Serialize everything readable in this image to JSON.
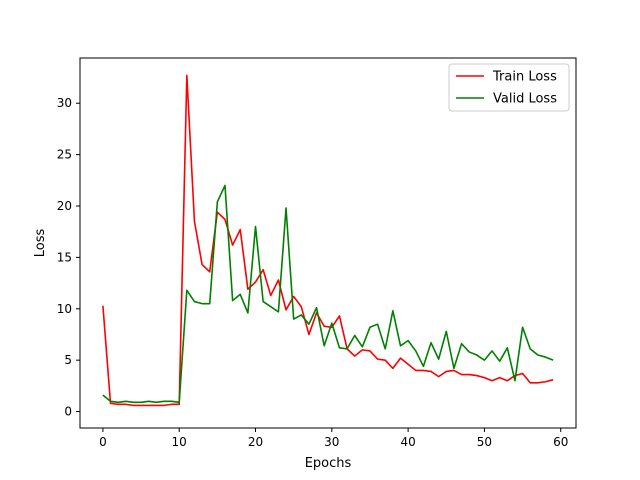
{
  "chart_data": {
    "type": "line",
    "title": "",
    "xlabel": "Epochs",
    "ylabel": "Loss",
    "xlim": [
      -3.0,
      62.0
    ],
    "ylim": [
      -1.6,
      34.4
    ],
    "xticks": [
      0,
      10,
      20,
      30,
      40,
      50,
      60
    ],
    "yticks": [
      0,
      5,
      10,
      15,
      20,
      25,
      30
    ],
    "legend_position": "top-right",
    "x": [
      0,
      1,
      2,
      3,
      4,
      5,
      6,
      7,
      8,
      9,
      10,
      11,
      12,
      13,
      14,
      15,
      16,
      17,
      18,
      19,
      20,
      21,
      22,
      23,
      24,
      25,
      26,
      27,
      28,
      29,
      30,
      31,
      32,
      33,
      34,
      35,
      36,
      37,
      38,
      39,
      40,
      41,
      42,
      43,
      44,
      45,
      46,
      47,
      48,
      49,
      50,
      51,
      52,
      53,
      54,
      55,
      56,
      57,
      58,
      59
    ],
    "series": [
      {
        "name": "Train Loss",
        "color": "#ff0000",
        "values": [
          10.3,
          0.8,
          0.7,
          0.7,
          0.6,
          0.6,
          0.6,
          0.6,
          0.6,
          0.7,
          0.7,
          32.7,
          18.5,
          14.3,
          13.6,
          19.4,
          18.7,
          16.2,
          17.7,
          11.9,
          12.6,
          13.8,
          11.3,
          12.8,
          9.9,
          11.2,
          10.2,
          7.5,
          9.6,
          8.3,
          8.2,
          9.3,
          6.1,
          5.4,
          6.0,
          5.9,
          5.1,
          5.0,
          4.2,
          5.2,
          4.6,
          4.0,
          4.0,
          3.9,
          3.4,
          3.9,
          4.0,
          3.6,
          3.6,
          3.5,
          3.3,
          3.0,
          3.3,
          3.0,
          3.5,
          3.7,
          2.8,
          2.8,
          2.9,
          3.1
        ]
      },
      {
        "name": "Valid Loss",
        "color": "#008000",
        "values": [
          1.6,
          1.0,
          0.9,
          1.0,
          0.9,
          0.9,
          1.0,
          0.9,
          1.0,
          1.0,
          0.9,
          11.8,
          10.7,
          10.5,
          10.5,
          20.4,
          22.0,
          10.8,
          11.4,
          9.6,
          18.0,
          10.7,
          10.2,
          9.7,
          19.8,
          9.0,
          9.4,
          8.5,
          10.1,
          6.4,
          8.6,
          6.2,
          6.1,
          7.4,
          6.3,
          8.2,
          8.5,
          6.1,
          9.8,
          6.4,
          6.9,
          5.9,
          4.4,
          6.7,
          5.1,
          7.8,
          4.2,
          6.6,
          5.8,
          5.5,
          5.0,
          5.9,
          4.9,
          6.2,
          3.0,
          8.2,
          6.1,
          5.5,
          5.3,
          5.0
        ]
      }
    ]
  }
}
